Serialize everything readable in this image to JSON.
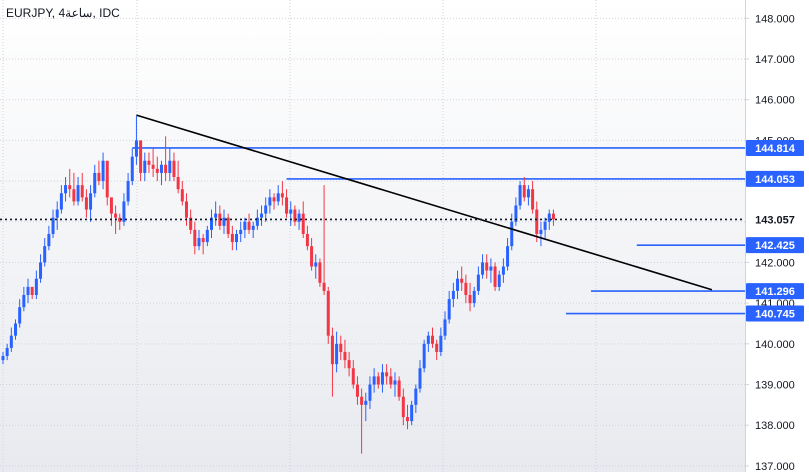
{
  "header": {
    "symbol_title": "EURJPY, 4ساعة, IDC"
  },
  "colors": {
    "up": "#2962ff",
    "down": "#f23645",
    "level": "#2962ff",
    "trend": "#000000",
    "grid": "#d1d4dc",
    "label_bg": "#2962ff",
    "label_text": "#ffffff",
    "current": "#131722"
  },
  "chart_data": {
    "type": "candlestick",
    "symbol": "EURJPY",
    "ylim": [
      136.85,
      148.45
    ],
    "y_ticks": [
      "137.000",
      "138.000",
      "139.000",
      "140.000",
      "141.000",
      "142.000",
      "143.000",
      "144.000",
      "145.000",
      "146.000",
      "147.000",
      "148.000"
    ],
    "grid": true,
    "current_price": "143.057",
    "levels": [
      {
        "value": "144.814",
        "label": "144.814",
        "start_bar": 31
      },
      {
        "value": "144.053",
        "label": "144.053",
        "start_bar": 68
      },
      {
        "value": "142.425",
        "label": "142.425",
        "start_bar": 152
      },
      {
        "value": "141.296",
        "label": "141.296",
        "start_bar": 141
      },
      {
        "value": "140.745",
        "label": "140.745",
        "start_bar": 135
      }
    ],
    "trendline": {
      "start": {
        "bar": 32,
        "price": 145.62
      },
      "end": {
        "bar": 170,
        "price": 141.33
      }
    },
    "candles": [
      [
        139.6,
        139.8,
        139.5,
        139.7
      ],
      [
        139.7,
        140.0,
        139.6,
        139.9
      ],
      [
        139.9,
        140.4,
        139.8,
        140.2
      ],
      [
        140.2,
        140.6,
        140.1,
        140.5
      ],
      [
        140.5,
        141.1,
        140.4,
        140.9
      ],
      [
        140.9,
        141.4,
        140.8,
        141.2
      ],
      [
        141.2,
        141.6,
        141.0,
        141.4
      ],
      [
        141.4,
        141.3,
        141.1,
        141.2
      ],
      [
        141.2,
        141.8,
        141.1,
        141.6
      ],
      [
        141.6,
        142.2,
        141.5,
        142.0
      ],
      [
        142.0,
        142.6,
        141.9,
        142.4
      ],
      [
        142.4,
        142.9,
        142.3,
        142.7
      ],
      [
        142.7,
        143.3,
        142.6,
        143.1
      ],
      [
        143.1,
        143.5,
        142.8,
        143.3
      ],
      [
        143.3,
        143.9,
        143.2,
        143.7
      ],
      [
        143.7,
        144.1,
        143.5,
        143.9
      ],
      [
        143.9,
        144.3,
        143.6,
        143.8
      ],
      [
        143.8,
        144.2,
        143.4,
        143.5
      ],
      [
        143.5,
        144.1,
        143.4,
        143.9
      ],
      [
        143.9,
        144.2,
        143.5,
        143.6
      ],
      [
        143.6,
        143.8,
        143.1,
        143.3
      ],
      [
        143.3,
        143.9,
        143.0,
        143.7
      ],
      [
        143.7,
        144.4,
        143.6,
        144.2
      ],
      [
        144.2,
        144.5,
        143.9,
        144.0
      ],
      [
        144.0,
        144.7,
        143.8,
        144.5
      ],
      [
        144.5,
        144.4,
        143.4,
        143.6
      ],
      [
        143.6,
        143.5,
        142.9,
        143.2
      ],
      [
        143.2,
        143.4,
        142.7,
        143.1
      ],
      [
        143.1,
        143.2,
        142.8,
        143.0
      ],
      [
        143.0,
        143.7,
        142.9,
        143.5
      ],
      [
        143.5,
        144.2,
        143.4,
        144.0
      ],
      [
        144.0,
        144.8,
        143.9,
        144.6
      ],
      [
        144.6,
        145.6,
        144.4,
        145.0
      ],
      [
        145.0,
        144.9,
        144.0,
        144.2
      ],
      [
        144.2,
        144.7,
        144.0,
        144.5
      ],
      [
        144.5,
        144.7,
        144.2,
        144.4
      ],
      [
        144.4,
        144.8,
        144.1,
        144.3
      ],
      [
        144.3,
        144.6,
        144.0,
        144.2
      ],
      [
        144.2,
        144.5,
        143.9,
        144.4
      ],
      [
        144.4,
        145.1,
        144.0,
        144.2
      ],
      [
        144.2,
        144.8,
        144.0,
        144.5
      ],
      [
        144.5,
        144.7,
        144.0,
        144.1
      ],
      [
        144.1,
        144.5,
        143.7,
        143.8
      ],
      [
        143.8,
        144.0,
        143.4,
        143.5
      ],
      [
        143.5,
        143.7,
        142.9,
        143.1
      ],
      [
        143.1,
        143.3,
        142.7,
        142.8
      ],
      [
        142.8,
        143.0,
        142.2,
        142.4
      ],
      [
        142.4,
        142.8,
        142.3,
        142.6
      ],
      [
        142.6,
        142.7,
        142.2,
        142.5
      ],
      [
        142.5,
        142.9,
        142.4,
        142.8
      ],
      [
        142.8,
        143.3,
        142.6,
        143.1
      ],
      [
        143.1,
        143.5,
        142.9,
        143.2
      ],
      [
        143.2,
        143.4,
        142.8,
        142.9
      ],
      [
        142.9,
        143.3,
        142.7,
        143.1
      ],
      [
        143.1,
        143.2,
        142.6,
        142.7
      ],
      [
        142.7,
        142.9,
        142.3,
        142.5
      ],
      [
        142.5,
        142.8,
        142.3,
        142.7
      ],
      [
        142.7,
        143.0,
        142.5,
        142.8
      ],
      [
        142.8,
        143.1,
        142.6,
        143.0
      ],
      [
        143.0,
        143.2,
        142.7,
        142.8
      ],
      [
        142.8,
        143.0,
        142.6,
        142.9
      ],
      [
        142.9,
        143.3,
        142.8,
        143.1
      ],
      [
        143.1,
        143.4,
        142.9,
        143.2
      ],
      [
        143.2,
        143.6,
        143.0,
        143.4
      ],
      [
        143.4,
        143.8,
        143.2,
        143.6
      ],
      [
        143.6,
        143.7,
        143.3,
        143.5
      ],
      [
        143.5,
        143.9,
        143.4,
        143.7
      ],
      [
        143.7,
        144.0,
        143.4,
        143.6
      ],
      [
        143.6,
        143.8,
        143.1,
        143.2
      ],
      [
        143.2,
        143.5,
        142.9,
        143.3
      ],
      [
        143.3,
        143.4,
        142.9,
        143.0
      ],
      [
        143.0,
        143.3,
        142.8,
        143.2
      ],
      [
        143.2,
        143.5,
        142.6,
        142.7
      ],
      [
        142.7,
        142.9,
        142.3,
        142.4
      ],
      [
        142.4,
        142.6,
        141.8,
        141.9
      ],
      [
        141.9,
        142.2,
        141.6,
        142.0
      ],
      [
        142.0,
        142.1,
        141.4,
        141.5
      ],
      [
        141.5,
        143.9,
        141.2,
        141.3
      ],
      [
        141.3,
        141.4,
        140.0,
        140.2
      ],
      [
        140.2,
        140.4,
        138.7,
        139.5
      ],
      [
        139.5,
        140.3,
        139.3,
        140.0
      ],
      [
        140.0,
        140.2,
        139.6,
        139.8
      ],
      [
        139.8,
        140.1,
        139.4,
        139.6
      ],
      [
        139.6,
        139.8,
        139.2,
        139.4
      ],
      [
        139.4,
        139.6,
        138.9,
        139.0
      ],
      [
        139.0,
        139.2,
        138.5,
        138.7
      ],
      [
        138.7,
        138.9,
        137.3,
        138.5
      ],
      [
        138.5,
        138.8,
        138.1,
        138.6
      ],
      [
        138.6,
        139.2,
        138.4,
        139.0
      ],
      [
        139.0,
        139.4,
        138.8,
        139.2
      ],
      [
        139.2,
        139.3,
        138.9,
        139.0
      ],
      [
        139.0,
        139.5,
        138.8,
        139.3
      ],
      [
        139.3,
        139.5,
        139.0,
        139.2
      ],
      [
        139.2,
        139.4,
        138.9,
        139.0
      ],
      [
        139.0,
        139.3,
        138.7,
        139.1
      ],
      [
        139.1,
        139.2,
        138.6,
        138.7
      ],
      [
        138.7,
        138.9,
        138.0,
        138.2
      ],
      [
        138.2,
        138.5,
        137.9,
        138.1
      ],
      [
        138.1,
        138.6,
        138.0,
        138.5
      ],
      [
        138.5,
        139.0,
        138.3,
        138.9
      ],
      [
        138.9,
        139.6,
        138.8,
        139.4
      ],
      [
        139.4,
        140.1,
        139.3,
        140.0
      ],
      [
        140.0,
        140.3,
        139.8,
        140.2
      ],
      [
        140.2,
        140.4,
        139.9,
        140.0
      ],
      [
        140.0,
        140.1,
        139.6,
        139.8
      ],
      [
        139.8,
        140.4,
        139.7,
        140.2
      ],
      [
        140.2,
        140.8,
        140.1,
        140.6
      ],
      [
        140.6,
        141.3,
        140.5,
        141.1
      ],
      [
        141.1,
        141.5,
        140.9,
        141.3
      ],
      [
        141.3,
        141.8,
        141.1,
        141.6
      ],
      [
        141.6,
        141.9,
        141.3,
        141.5
      ],
      [
        141.5,
        141.7,
        141.0,
        141.2
      ],
      [
        141.2,
        141.5,
        140.8,
        141.0
      ],
      [
        141.0,
        141.4,
        140.9,
        141.3
      ],
      [
        141.3,
        141.9,
        141.2,
        141.7
      ],
      [
        141.7,
        142.2,
        141.6,
        142.0
      ],
      [
        142.0,
        142.2,
        141.6,
        141.8
      ],
      [
        141.8,
        142.1,
        141.5,
        141.9
      ],
      [
        141.9,
        142.0,
        141.3,
        141.4
      ],
      [
        141.4,
        141.8,
        141.3,
        141.7
      ],
      [
        141.7,
        142.1,
        141.5,
        141.9
      ],
      [
        141.9,
        142.6,
        141.8,
        142.4
      ],
      [
        142.4,
        143.2,
        142.3,
        143.0
      ],
      [
        143.0,
        143.6,
        142.9,
        143.4
      ],
      [
        143.4,
        144.0,
        143.3,
        143.9
      ],
      [
        143.9,
        144.1,
        143.5,
        143.6
      ],
      [
        143.6,
        143.9,
        143.4,
        143.8
      ],
      [
        143.8,
        144.0,
        143.2,
        143.3
      ],
      [
        143.3,
        143.5,
        142.5,
        142.7
      ],
      [
        142.7,
        143.0,
        142.4,
        142.8
      ],
      [
        142.8,
        143.1,
        142.6,
        143.0
      ],
      [
        143.0,
        143.3,
        142.8,
        143.2
      ],
      [
        143.2,
        143.3,
        142.9,
        143.06
      ]
    ]
  }
}
